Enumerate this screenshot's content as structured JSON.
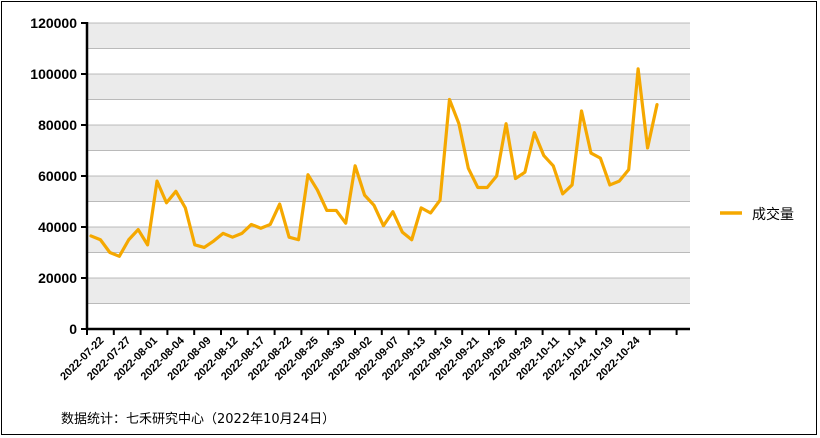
{
  "chart_data": {
    "type": "line",
    "title": "",
    "xlabel": "",
    "ylabel": "",
    "ylim": [
      0,
      120000
    ],
    "yticks": [
      0,
      20000,
      40000,
      60000,
      80000,
      100000,
      120000
    ],
    "x_tick_labels": [
      "2022-07-22",
      "2022-07-27",
      "2022-08-01",
      "2022-08-04",
      "2022-08-09",
      "2022-08-12",
      "2022-08-17",
      "2022-08-22",
      "2022-08-25",
      "2022-08-30",
      "2022-09-02",
      "2022-09-07",
      "2022-09-13",
      "2022-09-16",
      "2022-09-21",
      "2022-09-26",
      "2022-09-29",
      "2022-10-11",
      "2022-10-14",
      "2022-10-19",
      "2022-10-24"
    ],
    "grid": true,
    "legend_position": "right",
    "series": [
      {
        "name": "成交量",
        "color": "#F5A800",
        "values": [
          36500,
          35000,
          30000,
          28500,
          35000,
          39000,
          33000,
          58000,
          49500,
          54000,
          47500,
          33000,
          32000,
          34500,
          37500,
          36000,
          37500,
          41000,
          39500,
          41000,
          49000,
          36000,
          35000,
          60500,
          54500,
          46500,
          46500,
          41500,
          64000,
          52500,
          48500,
          40500,
          46000,
          38000,
          35000,
          47500,
          45500,
          50500,
          90000,
          80500,
          63000,
          55500,
          55500,
          60000,
          80500,
          59000,
          61500,
          77000,
          68000,
          64000,
          53000,
          56500,
          85500,
          69000,
          67000,
          56500,
          58000,
          62500,
          102000,
          71000,
          88000
        ]
      }
    ]
  },
  "legend": {
    "label": "成交量"
  },
  "source_note": "数据统计：七禾研究中心（2022年10月24日）",
  "colors": {
    "line": "#F5A800",
    "band": "#EBEBEB",
    "grid": "#A6A6A6",
    "axis": "#000000"
  }
}
